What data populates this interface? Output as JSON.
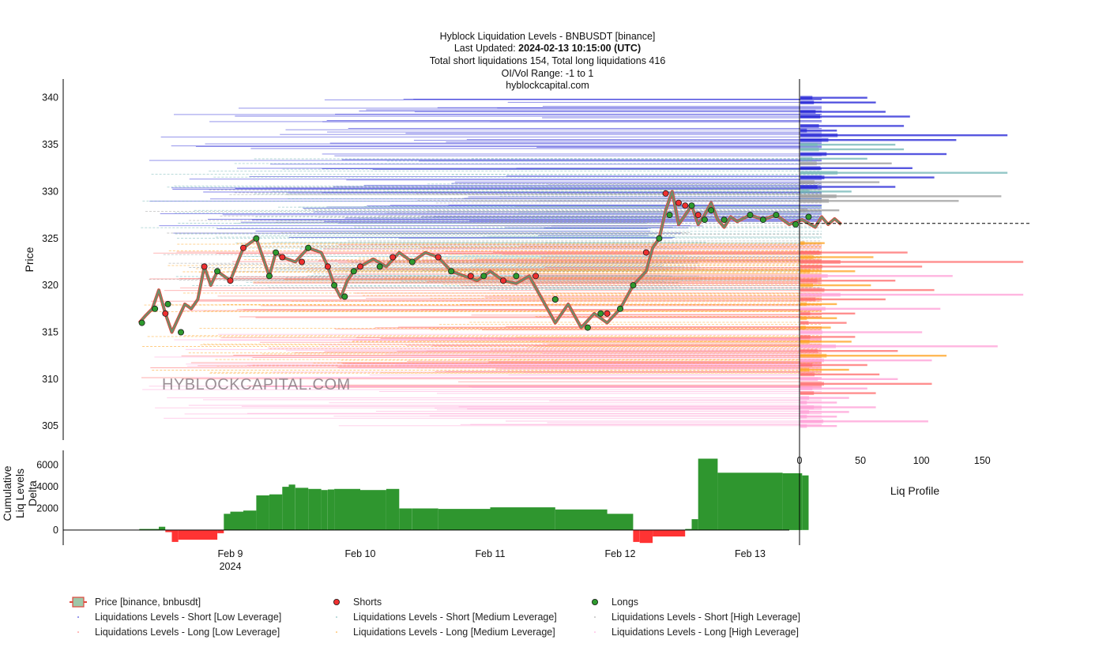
{
  "header": {
    "line1": "Hyblock Liquidation Levels - BNBUSDT [binance]",
    "line2_label": "Last Updated: ",
    "line2_value": "2024-02-13 10:15:00 (UTC)",
    "line3": "Total short liquidations 154, Total long liquidations 416",
    "line4": "OI/Vol Range: -1 to 1",
    "line5": "hyblockcapital.com"
  },
  "watermark": "HYBLOCKCAPITAL.COM",
  "colors": {
    "price_line": "#6b8f6b",
    "price_edge": "#e0463c",
    "short_marker": "#ee3030",
    "long_marker": "#2e9a2e",
    "short_low": "#1f1fd6",
    "short_medium": "#6fb4b4",
    "short_high": "#9a9a9a",
    "long_low": "#ff6a6a",
    "long_medium": "#ffa21f",
    "long_high": "#ff9ed6",
    "delta_positive": "#2f962f",
    "delta_negative": "#ff3333"
  },
  "chart_data": [
    {
      "type": "line",
      "id": "price-panel",
      "ylabel": "Price",
      "ylim": [
        303.5,
        342
      ],
      "yticks": [
        305,
        310,
        315,
        320,
        325,
        330,
        335,
        340
      ],
      "x_unit": "days since start of axis (Feb 8 00:00)",
      "xlim": [
        0,
        6.25
      ],
      "xticks": [
        {
          "pos": 1,
          "label": "Feb 9",
          "sublabel": "2024"
        },
        {
          "pos": 2,
          "label": "Feb 10",
          "sublabel": ""
        },
        {
          "pos": 3,
          "label": "Feb 11",
          "sublabel": ""
        },
        {
          "pos": 4,
          "label": "Feb 12",
          "sublabel": ""
        },
        {
          "pos": 5,
          "label": "Feb 13",
          "sublabel": ""
        }
      ],
      "current_price": 326.6,
      "series": [
        {
          "name": "Price [binance, bnbusdt]",
          "x": [
            0.3,
            0.35,
            0.4,
            0.45,
            0.5,
            0.55,
            0.6,
            0.65,
            0.7,
            0.75,
            0.8,
            0.85,
            0.9,
            1.0,
            1.1,
            1.2,
            1.3,
            1.35,
            1.4,
            1.5,
            1.6,
            1.7,
            1.75,
            1.8,
            1.85,
            1.9,
            1.95,
            2.0,
            2.1,
            2.2,
            2.3,
            2.4,
            2.5,
            2.6,
            2.7,
            2.8,
            2.9,
            2.95,
            3.0,
            3.1,
            3.2,
            3.3,
            3.4,
            3.5,
            3.6,
            3.7,
            3.8,
            3.9,
            4.0,
            4.1,
            4.2,
            4.25,
            4.3,
            4.35,
            4.4,
            4.45,
            4.5,
            4.55,
            4.6,
            4.65,
            4.7,
            4.75,
            4.8,
            4.85,
            4.9,
            5.0,
            5.1,
            5.2,
            5.3,
            5.4,
            5.5,
            5.55,
            5.6,
            5.65,
            5.7
          ],
          "values": [
            316.0,
            316.8,
            317.5,
            319.5,
            317.0,
            315.0,
            316.5,
            318.0,
            317.5,
            318.5,
            322.0,
            320.0,
            321.5,
            320.5,
            324.0,
            325.0,
            321.0,
            323.5,
            323.0,
            322.5,
            324.0,
            323.5,
            322.0,
            320.0,
            318.7,
            320.5,
            321.5,
            322.0,
            322.8,
            322.0,
            323.5,
            322.5,
            323.5,
            323.0,
            321.5,
            321.0,
            320.5,
            321.0,
            321.5,
            320.5,
            320.2,
            321.0,
            318.5,
            316.0,
            318.0,
            315.5,
            317.0,
            316.0,
            317.5,
            320.0,
            321.5,
            324.0,
            325.0,
            328.0,
            330.0,
            326.5,
            327.5,
            328.5,
            326.5,
            327.5,
            328.8,
            327.0,
            326.2,
            327.3,
            326.8,
            327.5,
            327.0,
            327.5,
            326.5,
            327.0,
            326.2,
            327.3,
            326.5,
            327.1,
            326.5
          ]
        },
        {
          "name": "Shorts",
          "x": [
            0.5,
            0.8,
            1.0,
            1.1,
            1.4,
            1.55,
            1.75,
            2.0,
            2.25,
            2.6,
            2.85,
            3.1,
            3.35,
            3.5,
            3.9,
            4.2,
            4.35,
            4.45,
            4.5,
            4.6
          ],
          "values": [
            317.0,
            322.0,
            320.5,
            324.0,
            323.0,
            322.5,
            322.0,
            322.0,
            323.0,
            323.0,
            321.0,
            320.5,
            321.0,
            318.5,
            317.0,
            323.5,
            329.8,
            328.8,
            328.5,
            327.5
          ]
        },
        {
          "name": "Longs",
          "x": [
            0.32,
            0.42,
            0.52,
            0.62,
            0.9,
            1.2,
            1.3,
            1.35,
            1.6,
            1.8,
            1.88,
            1.95,
            2.15,
            2.4,
            2.7,
            2.95,
            3.2,
            3.5,
            3.75,
            3.85,
            4.0,
            4.1,
            4.3,
            4.38,
            4.55,
            4.65,
            4.7,
            4.8,
            5.0,
            5.1,
            5.2,
            5.35,
            5.45
          ],
          "values": [
            316.0,
            317.5,
            318.0,
            315.0,
            321.5,
            325.0,
            321.0,
            323.5,
            324.0,
            320.0,
            318.8,
            321.5,
            322.0,
            322.5,
            321.5,
            321.0,
            321.0,
            318.5,
            315.5,
            317.0,
            317.5,
            320.0,
            325.0,
            327.5,
            328.5,
            327.0,
            328.0,
            327.0,
            327.5,
            327.0,
            327.5,
            326.5,
            327.3
          ]
        }
      ],
      "liquidation_bands": [
        {
          "name": "Liquidations Levels - Short [Low Leverage]",
          "color_key": "short_low",
          "y_from": 325.0,
          "y_to": 340.0
        },
        {
          "name": "Liquidations Levels - Short [Medium Leverage]",
          "color_key": "short_medium",
          "y_from": 319.5,
          "y_to": 334.0
        },
        {
          "name": "Liquidations Levels - Short [High Leverage]",
          "color_key": "short_high",
          "y_from": 320.5,
          "y_to": 331.0
        },
        {
          "name": "Liquidations Levels - Long [Low Leverage]",
          "color_key": "long_low",
          "y_from": 309.0,
          "y_to": 324.5
        },
        {
          "name": "Liquidations Levels - Long [Medium Leverage]",
          "color_key": "long_medium",
          "y_from": 310.5,
          "y_to": 325.0
        },
        {
          "name": "Liquidations Levels - Long [High Leverage]",
          "color_key": "long_high",
          "y_from": 305.0,
          "y_to": 315.0
        }
      ]
    },
    {
      "type": "area",
      "id": "delta-panel",
      "ylabel": "Cumulative Liq Levels Delta",
      "ylim": [
        -1400,
        7000
      ],
      "yticks": [
        0,
        2000,
        4000,
        6000
      ],
      "x": [
        0.3,
        0.45,
        0.5,
        0.55,
        0.6,
        0.9,
        0.95,
        1.0,
        1.1,
        1.2,
        1.3,
        1.4,
        1.45,
        1.5,
        1.6,
        1.7,
        1.75,
        1.8,
        2.0,
        2.2,
        2.3,
        2.4,
        2.45,
        2.6,
        3.0,
        3.5,
        3.9,
        4.1,
        4.15,
        4.25,
        4.5,
        4.55,
        4.6,
        4.75,
        5.0,
        5.25,
        5.4,
        5.45
      ],
      "values": [
        100,
        300,
        -200,
        -1100,
        -900,
        -300,
        1500,
        1700,
        1800,
        3200,
        3300,
        4000,
        4200,
        3900,
        3800,
        3700,
        3750,
        3800,
        3700,
        3800,
        2000,
        2000,
        2000,
        1950,
        2100,
        1900,
        1500,
        -1100,
        -1200,
        -600,
        100,
        1000,
        6600,
        5300,
        5300,
        5250,
        5050,
        5100
      ]
    }
  ],
  "liq_profile": {
    "xlabel": "Liq Profile",
    "xlim": [
      0,
      190
    ],
    "xticks": [
      0,
      50,
      100,
      150
    ],
    "bars": [
      {
        "y": 340.0,
        "value": 55,
        "color_key": "short_low"
      },
      {
        "y": 339.5,
        "value": 62,
        "color_key": "short_low"
      },
      {
        "y": 338.5,
        "value": 70,
        "color_key": "short_low"
      },
      {
        "y": 338.0,
        "value": 90,
        "color_key": "short_low"
      },
      {
        "y": 337.0,
        "value": 85,
        "color_key": "short_low"
      },
      {
        "y": 336.5,
        "value": 30,
        "color_key": "short_low"
      },
      {
        "y": 336.0,
        "value": 170,
        "color_key": "short_low"
      },
      {
        "y": 335.5,
        "value": 128,
        "color_key": "short_low"
      },
      {
        "y": 335.0,
        "value": 78,
        "color_key": "short_medium"
      },
      {
        "y": 334.5,
        "value": 85,
        "color_key": "short_medium"
      },
      {
        "y": 334.0,
        "value": 120,
        "color_key": "short_low"
      },
      {
        "y": 333.5,
        "value": 55,
        "color_key": "short_medium"
      },
      {
        "y": 333.0,
        "value": 75,
        "color_key": "short_high"
      },
      {
        "y": 332.5,
        "value": 92,
        "color_key": "short_low"
      },
      {
        "y": 332.0,
        "value": 170,
        "color_key": "short_medium"
      },
      {
        "y": 331.5,
        "value": 110,
        "color_key": "short_low"
      },
      {
        "y": 331.0,
        "value": 65,
        "color_key": "short_high"
      },
      {
        "y": 330.5,
        "value": 78,
        "color_key": "short_low"
      },
      {
        "y": 330.0,
        "value": 42,
        "color_key": "short_medium"
      },
      {
        "y": 329.5,
        "value": 165,
        "color_key": "short_high"
      },
      {
        "y": 329.0,
        "value": 130,
        "color_key": "short_high"
      },
      {
        "y": 328.0,
        "value": 32,
        "color_key": "short_high"
      },
      {
        "y": 324.5,
        "value": 20,
        "color_key": "long_medium"
      },
      {
        "y": 323.5,
        "value": 88,
        "color_key": "long_low"
      },
      {
        "y": 323.0,
        "value": 60,
        "color_key": "long_medium"
      },
      {
        "y": 322.5,
        "value": 183,
        "color_key": "long_low"
      },
      {
        "y": 322.0,
        "value": 100,
        "color_key": "long_low"
      },
      {
        "y": 321.5,
        "value": 45,
        "color_key": "long_medium"
      },
      {
        "y": 321.0,
        "value": 125,
        "color_key": "long_high"
      },
      {
        "y": 320.5,
        "value": 78,
        "color_key": "long_low"
      },
      {
        "y": 320.0,
        "value": 58,
        "color_key": "long_medium"
      },
      {
        "y": 319.5,
        "value": 110,
        "color_key": "long_low"
      },
      {
        "y": 319.0,
        "value": 183,
        "color_key": "long_high"
      },
      {
        "y": 318.5,
        "value": 70,
        "color_key": "long_low"
      },
      {
        "y": 318.0,
        "value": 30,
        "color_key": "long_medium"
      },
      {
        "y": 317.5,
        "value": 115,
        "color_key": "long_high"
      },
      {
        "y": 317.0,
        "value": 45,
        "color_key": "long_low"
      },
      {
        "y": 316.5,
        "value": 30,
        "color_key": "long_medium"
      },
      {
        "y": 316.0,
        "value": 38,
        "color_key": "long_low"
      },
      {
        "y": 315.5,
        "value": 25,
        "color_key": "long_medium"
      },
      {
        "y": 315.0,
        "value": 100,
        "color_key": "long_high"
      },
      {
        "y": 314.5,
        "value": 45,
        "color_key": "long_low"
      },
      {
        "y": 314.0,
        "value": 42,
        "color_key": "long_medium"
      },
      {
        "y": 313.5,
        "value": 162,
        "color_key": "long_high"
      },
      {
        "y": 313.0,
        "value": 80,
        "color_key": "long_low"
      },
      {
        "y": 312.5,
        "value": 120,
        "color_key": "long_medium"
      },
      {
        "y": 312.0,
        "value": 108,
        "color_key": "long_high"
      },
      {
        "y": 311.5,
        "value": 55,
        "color_key": "long_low"
      },
      {
        "y": 311.0,
        "value": 40,
        "color_key": "long_medium"
      },
      {
        "y": 310.5,
        "value": 65,
        "color_key": "long_low"
      },
      {
        "y": 310.0,
        "value": 80,
        "color_key": "long_high"
      },
      {
        "y": 309.5,
        "value": 108,
        "color_key": "long_low"
      },
      {
        "y": 309.0,
        "value": 55,
        "color_key": "long_high"
      },
      {
        "y": 308.5,
        "value": 62,
        "color_key": "long_low"
      },
      {
        "y": 308.0,
        "value": 40,
        "color_key": "long_high"
      },
      {
        "y": 307.5,
        "value": 30,
        "color_key": "long_high"
      },
      {
        "y": 307.0,
        "value": 62,
        "color_key": "long_high"
      },
      {
        "y": 306.5,
        "value": 40,
        "color_key": "long_high"
      },
      {
        "y": 306.0,
        "value": 30,
        "color_key": "long_high"
      },
      {
        "y": 305.5,
        "value": 105,
        "color_key": "long_high"
      },
      {
        "y": 305.0,
        "value": 30,
        "color_key": "long_high"
      }
    ]
  },
  "legend": {
    "items": [
      {
        "label": "Price [binance, bnbusdt]",
        "kind": "price",
        "color_key": "price_line"
      },
      {
        "label": "Shorts",
        "kind": "marker",
        "color_key": "short_marker"
      },
      {
        "label": "Longs",
        "kind": "marker",
        "color_key": "long_marker"
      },
      {
        "label": "Liquidations Levels - Short [Low Leverage]",
        "kind": "dot",
        "color_key": "short_low"
      },
      {
        "label": "Liquidations Levels - Short [Medium Leverage]",
        "kind": "dot",
        "color_key": "short_medium"
      },
      {
        "label": "Liquidations Levels - Short [High Leverage]",
        "kind": "dot",
        "color_key": "short_high"
      },
      {
        "label": "Liquidations Levels - Long [Low Leverage]",
        "kind": "dot",
        "color_key": "long_low"
      },
      {
        "label": "Liquidations Levels - Long [Medium Leverage]",
        "kind": "dot",
        "color_key": "long_medium"
      },
      {
        "label": "Liquidations Levels - Long [High Leverage]",
        "kind": "dot",
        "color_key": "long_high"
      }
    ]
  }
}
